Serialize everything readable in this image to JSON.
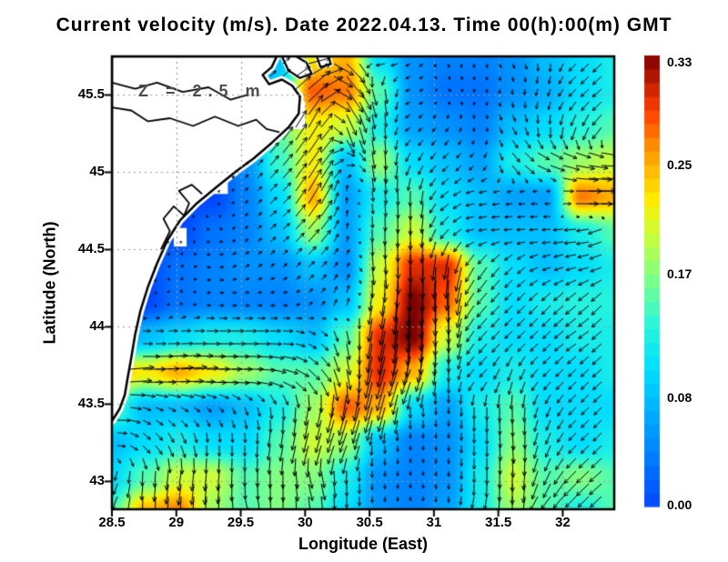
{
  "title": "Current velocity (m/s). Date 2022.04.13. Time 00(h):00(m) GMT",
  "annotation": "Z = 2.5 m",
  "axes": {
    "xlabel": "Longitude (East)",
    "ylabel": "Latitude (North)",
    "x_tick_labels": [
      "28.5",
      "29",
      "29.5",
      "30",
      "30.5",
      "31",
      "31.5",
      "32"
    ],
    "x_tick_values": [
      28.5,
      29,
      29.5,
      30,
      30.5,
      31,
      31.5,
      32
    ],
    "y_tick_labels": [
      "45.5",
      "45",
      "44.5",
      "44",
      "43.5",
      "43"
    ],
    "y_tick_values": [
      45.5,
      45,
      44.5,
      44,
      43.5,
      43
    ],
    "lon_range": [
      28.5,
      32.4
    ],
    "lat_range": [
      42.82,
      45.75
    ],
    "gridline_color": "#9a9a9a"
  },
  "colorbar": {
    "tick_labels": [
      "0.33",
      "0.25",
      "0.17",
      "0.08",
      "0.00"
    ],
    "tick_values": [
      0.33,
      0.25,
      0.17,
      0.08,
      0.0
    ],
    "min": 0.0,
    "max": 0.33,
    "stops": [
      [
        0.0,
        [
          0,
          70,
          255
        ]
      ],
      [
        0.1,
        [
          0,
          120,
          255
        ]
      ],
      [
        0.2,
        [
          0,
          170,
          255
        ]
      ],
      [
        0.3,
        [
          0,
          220,
          255
        ]
      ],
      [
        0.4,
        [
          40,
          245,
          220
        ]
      ],
      [
        0.5,
        [
          120,
          255,
          140
        ]
      ],
      [
        0.6,
        [
          200,
          255,
          60
        ]
      ],
      [
        0.68,
        [
          255,
          235,
          0
        ]
      ],
      [
        0.78,
        [
          255,
          160,
          0
        ]
      ],
      [
        0.88,
        [
          255,
          60,
          0
        ]
      ],
      [
        1.0,
        [
          128,
          0,
          0
        ]
      ]
    ]
  },
  "chart_data": {
    "type": "heatmap",
    "subtype": "vector-field",
    "units": "m/s",
    "depth_label": "Z = 2.5 m",
    "date": "2022.04.13",
    "time": "00(h):00(m) GMT",
    "speed_range": [
      0.0,
      0.33
    ],
    "lon_grid": [
      28.5,
      28.76,
      29.02,
      29.28,
      29.54,
      29.8,
      30.06,
      30.32,
      30.58,
      30.84,
      31.1,
      31.36,
      31.62,
      31.88,
      32.14,
      32.4
    ],
    "lat_grid": [
      45.75,
      45.52,
      45.3,
      45.07,
      44.84,
      44.61,
      44.39,
      44.16,
      43.93,
      43.7,
      43.48,
      43.25,
      43.02,
      42.8
    ],
    "speed": [
      [
        0,
        0,
        0,
        0,
        0,
        0.08,
        0.22,
        0.25,
        0.1,
        0.05,
        0.04,
        0.04,
        0.05,
        0.08,
        0.1,
        0.12
      ],
      [
        0,
        0,
        0,
        0,
        0,
        0.1,
        0.28,
        0.27,
        0.15,
        0.05,
        0.03,
        0.03,
        0.05,
        0.07,
        0.1,
        0.12
      ],
      [
        0,
        0,
        0,
        0,
        0,
        0.16,
        0.22,
        0.2,
        0.12,
        0.06,
        0.05,
        0.04,
        0.08,
        0.1,
        0.13,
        0.15
      ],
      [
        0,
        0,
        0,
        0,
        0.05,
        0.14,
        0.22,
        0.08,
        0.18,
        0.1,
        0.08,
        0.06,
        0.12,
        0.15,
        0.18,
        0.2
      ],
      [
        0,
        0,
        0,
        0,
        0.04,
        0.1,
        0.25,
        0.06,
        0.12,
        0.15,
        0.1,
        0.08,
        0.06,
        0.06,
        0.27,
        0.25
      ],
      [
        0,
        0,
        0,
        0.03,
        0.04,
        0.08,
        0.18,
        0.06,
        0.15,
        0.2,
        0.12,
        0.08,
        0.08,
        0.08,
        0.12,
        0.15
      ],
      [
        0,
        0,
        0.03,
        0.04,
        0.05,
        0.05,
        0.08,
        0.05,
        0.2,
        0.3,
        0.3,
        0.15,
        0.1,
        0.08,
        0.1,
        0.12
      ],
      [
        0,
        0,
        0.03,
        0.04,
        0.04,
        0.04,
        0.05,
        0.08,
        0.22,
        0.33,
        0.28,
        0.15,
        0.1,
        0.12,
        0.13,
        0.13
      ],
      [
        0,
        0.08,
        0.1,
        0.12,
        0.12,
        0.1,
        0.08,
        0.15,
        0.3,
        0.33,
        0.2,
        0.12,
        0.1,
        0.1,
        0.12,
        0.12
      ],
      [
        0.25,
        0.22,
        0.25,
        0.22,
        0.18,
        0.15,
        0.15,
        0.2,
        0.3,
        0.25,
        0.12,
        0.1,
        0.12,
        0.1,
        0.1,
        0.12
      ],
      [
        0.15,
        0.08,
        0.08,
        0.06,
        0.08,
        0.12,
        0.18,
        0.28,
        0.25,
        0.1,
        0.06,
        0.12,
        0.15,
        0.1,
        0.1,
        0.1
      ],
      [
        0.08,
        0.1,
        0.12,
        0.1,
        0.1,
        0.15,
        0.2,
        0.18,
        0.08,
        0.04,
        0.05,
        0.1,
        0.17,
        0.12,
        0.1,
        0.12
      ],
      [
        0.1,
        0.15,
        0.2,
        0.2,
        0.15,
        0.17,
        0.17,
        0.12,
        0.05,
        0.04,
        0.05,
        0.12,
        0.2,
        0.15,
        0.17,
        0.15
      ],
      [
        0.15,
        0.25,
        0.27,
        0.18,
        0.15,
        0.17,
        0.15,
        0.1,
        0.05,
        0.04,
        0.06,
        0.12,
        0.18,
        0.15,
        0.12,
        0.15
      ]
    ],
    "direction_deg_ccw_from_east": [
      [
        0,
        0,
        0,
        0,
        0,
        45,
        10,
        315,
        180,
        210,
        270,
        270,
        300,
        270,
        225,
        225
      ],
      [
        0,
        0,
        0,
        0,
        0,
        45,
        40,
        305,
        280,
        200,
        315,
        270,
        270,
        250,
        225,
        220
      ],
      [
        0,
        0,
        0,
        0,
        0,
        55,
        60,
        290,
        275,
        215,
        240,
        270,
        300,
        270,
        250,
        225
      ],
      [
        0,
        0,
        0,
        0,
        45,
        50,
        55,
        0,
        275,
        245,
        225,
        225,
        310,
        340,
        350,
        0
      ],
      [
        0,
        0,
        0,
        0,
        45,
        45,
        60,
        90,
        275,
        270,
        220,
        190,
        185,
        180,
        0,
        0
      ],
      [
        0,
        0,
        0,
        0,
        45,
        40,
        50,
        80,
        270,
        270,
        230,
        190,
        185,
        185,
        185,
        203
      ],
      [
        0,
        0,
        45,
        0,
        30,
        45,
        45,
        60,
        275,
        270,
        265,
        235,
        225,
        200,
        195,
        203
      ],
      [
        0,
        0,
        90,
        0,
        0,
        0,
        45,
        75,
        260,
        265,
        270,
        230,
        225,
        225,
        220,
        225
      ],
      [
        0,
        0,
        0,
        0,
        0,
        0,
        330,
        280,
        260,
        265,
        270,
        230,
        225,
        225,
        215,
        225
      ],
      [
        10,
        0,
        5,
        0,
        0,
        345,
        315,
        280,
        255,
        250,
        270,
        225,
        250,
        225,
        225,
        220
      ],
      [
        0,
        340,
        330,
        315,
        290,
        275,
        260,
        255,
        255,
        270,
        270,
        270,
        270,
        248,
        225,
        225
      ],
      [
        0,
        315,
        290,
        270,
        270,
        260,
        255,
        250,
        270,
        270,
        270,
        270,
        275,
        248,
        225,
        225
      ],
      [
        250,
        265,
        262,
        265,
        270,
        270,
        285,
        270,
        270,
        270,
        270,
        270,
        270,
        245,
        225,
        220
      ],
      [
        245,
        270,
        270,
        265,
        290,
        270,
        270,
        270,
        270,
        270,
        270,
        250,
        270,
        225,
        225,
        225
      ]
    ],
    "coastline_land_polygon": [
      [
        29.78,
        45.75
      ],
      [
        29.74,
        45.68
      ],
      [
        29.67,
        45.63
      ],
      [
        29.72,
        45.57
      ],
      [
        29.82,
        45.6
      ],
      [
        29.9,
        45.56
      ],
      [
        29.96,
        45.49
      ],
      [
        29.95,
        45.38
      ],
      [
        29.87,
        45.29
      ],
      [
        29.74,
        45.19
      ],
      [
        29.6,
        45.09
      ],
      [
        29.47,
        45.01
      ],
      [
        29.32,
        44.91
      ],
      [
        29.16,
        44.8
      ],
      [
        29.03,
        44.69
      ],
      [
        28.93,
        44.56
      ],
      [
        28.85,
        44.41
      ],
      [
        28.78,
        44.26
      ],
      [
        28.72,
        44.1
      ],
      [
        28.68,
        43.95
      ],
      [
        28.65,
        43.8
      ],
      [
        28.62,
        43.66
      ],
      [
        28.6,
        43.56
      ],
      [
        28.56,
        43.47
      ],
      [
        28.5,
        43.39
      ],
      [
        28.5,
        45.75
      ]
    ],
    "islands": [
      [
        [
          29.82,
          45.75
        ],
        [
          29.87,
          45.66
        ],
        [
          29.96,
          45.61
        ],
        [
          30.05,
          45.64
        ],
        [
          30.01,
          45.71
        ],
        [
          29.93,
          45.75
        ]
      ],
      [
        [
          30.09,
          45.75
        ],
        [
          30.12,
          45.68
        ],
        [
          30.2,
          45.7
        ],
        [
          30.18,
          45.75
        ]
      ]
    ],
    "lagoon_lines": [
      [
        [
          28.88,
          44.5
        ],
        [
          28.95,
          44.62
        ],
        [
          28.9,
          44.7
        ],
        [
          28.98,
          44.78
        ],
        [
          29.06,
          44.72
        ],
        [
          29.1,
          44.8
        ],
        [
          29.02,
          44.88
        ],
        [
          29.12,
          44.92
        ],
        [
          29.2,
          44.86
        ]
      ],
      [
        [
          28.5,
          45.42
        ],
        [
          28.65,
          45.4
        ],
        [
          28.78,
          45.33
        ],
        [
          28.95,
          45.35
        ],
        [
          29.13,
          45.3
        ],
        [
          29.3,
          45.36
        ],
        [
          29.48,
          45.3
        ],
        [
          29.62,
          45.34
        ],
        [
          29.7,
          45.28
        ],
        [
          29.8,
          45.26
        ]
      ],
      [
        [
          28.5,
          45.58
        ],
        [
          28.68,
          45.54
        ],
        [
          28.85,
          45.58
        ],
        [
          29.05,
          45.52
        ],
        [
          29.25,
          45.55
        ],
        [
          29.42,
          45.47
        ],
        [
          29.55,
          45.5
        ]
      ]
    ],
    "mask_patches": [
      [
        29.8,
        45.28,
        30.0,
        45.46
      ],
      [
        28.98,
        44.52,
        29.08,
        44.64
      ],
      [
        29.28,
        44.86,
        29.4,
        44.96
      ]
    ]
  }
}
